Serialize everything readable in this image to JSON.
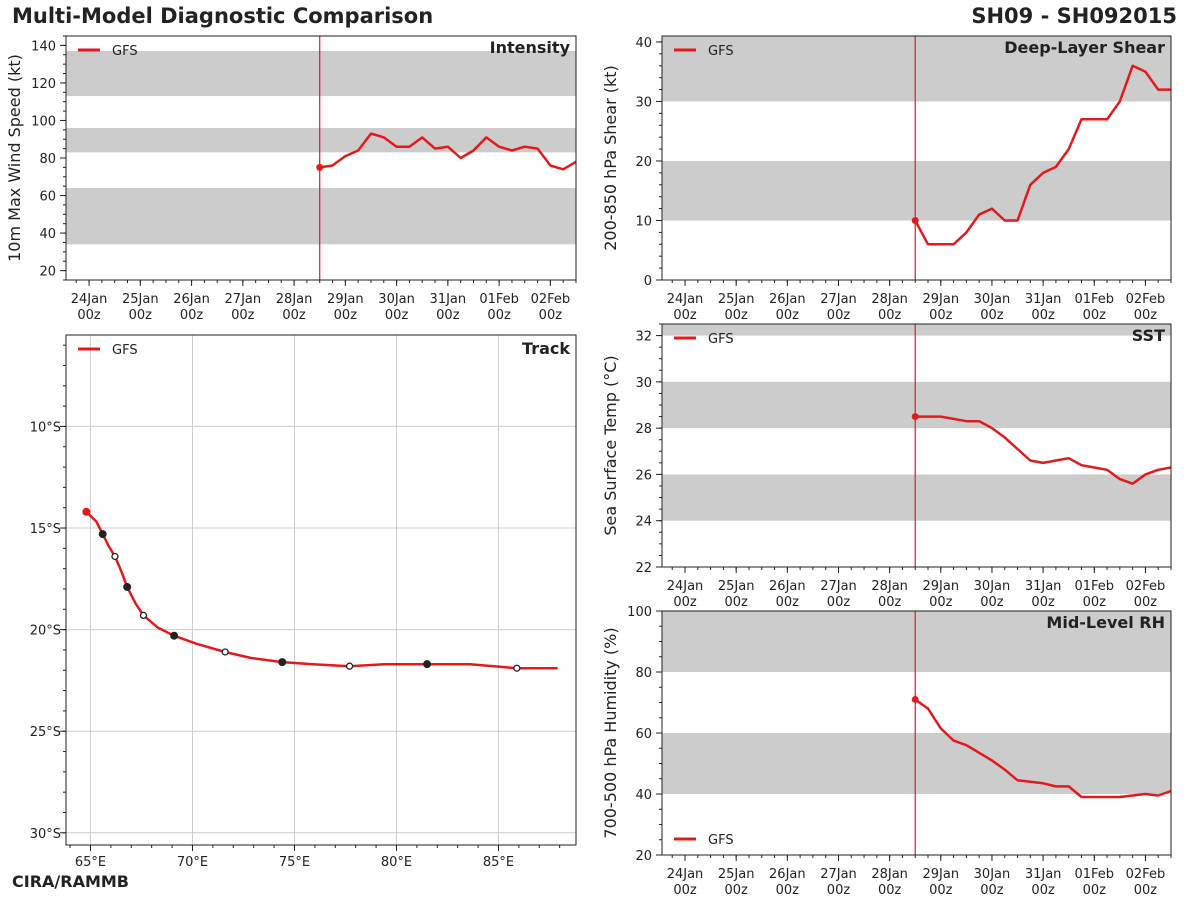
{
  "header": {
    "title": "Multi-Model Diagnostic Comparison",
    "storm": "SH09 - SH092015"
  },
  "footer": {
    "credit": "CIRA/RAMMB"
  },
  "colors": {
    "series": "#e31a1c",
    "band": "#cccccc",
    "grid": "#cccccc",
    "axis": "#222222"
  },
  "shared_time_axis": {
    "tick_labels": [
      [
        "24Jan",
        "00z"
      ],
      [
        "25Jan",
        "00z"
      ],
      [
        "26Jan",
        "00z"
      ],
      [
        "27Jan",
        "00z"
      ],
      [
        "28Jan",
        "00z"
      ],
      [
        "29Jan",
        "00z"
      ],
      [
        "30Jan",
        "00z"
      ],
      [
        "31Jan",
        "00z"
      ],
      [
        "01Feb",
        "00z"
      ],
      [
        "02Feb",
        "00z"
      ]
    ],
    "tick_days": [
      0,
      1,
      2,
      3,
      4,
      5,
      6,
      7,
      8,
      9
    ],
    "xlim_days": [
      -0.45,
      9.5
    ],
    "init_day": 4.5
  },
  "chart_data": [
    {
      "id": "intensity",
      "type": "line",
      "title": "Intensity",
      "ylabel": "10m Max Wind Speed (kt)",
      "ylim": [
        15,
        145
      ],
      "yticks": [
        20,
        40,
        60,
        80,
        100,
        120,
        140
      ],
      "minor_step": 5,
      "bands": [
        [
          34,
          64
        ],
        [
          83,
          96
        ],
        [
          113,
          137
        ]
      ],
      "legend": [
        {
          "name": "GFS",
          "position": "top-left"
        }
      ],
      "series": [
        {
          "name": "GFS",
          "x": [
            4.5,
            4.75,
            5,
            5.25,
            5.5,
            5.75,
            6,
            6.25,
            6.5,
            6.75,
            7,
            7.25,
            7.5,
            7.75,
            8,
            8.25,
            8.5,
            8.75,
            9,
            9.25,
            9.5
          ],
          "values": [
            75,
            76,
            81,
            84,
            93,
            91,
            86,
            86,
            91,
            85,
            86,
            80,
            84,
            91,
            86,
            84,
            86,
            85,
            76,
            74,
            78
          ]
        }
      ]
    },
    {
      "id": "shear",
      "type": "line",
      "title": "Deep-Layer Shear",
      "ylabel": "200-850 hPa Shear (kt)",
      "ylim": [
        0,
        41
      ],
      "yticks": [
        0,
        10,
        20,
        30,
        40
      ],
      "minor_step": 2,
      "bands": [
        [
          10,
          20
        ],
        [
          30,
          41
        ]
      ],
      "legend": [
        {
          "name": "GFS",
          "position": "top-left"
        }
      ],
      "series": [
        {
          "name": "GFS",
          "x": [
            4.5,
            4.75,
            5,
            5.25,
            5.5,
            5.75,
            6,
            6.25,
            6.5,
            6.75,
            7,
            7.25,
            7.5,
            7.75,
            8,
            8.25,
            8.5,
            8.75,
            9,
            9.25,
            9.5
          ],
          "values": [
            10,
            6,
            6,
            6,
            8,
            11,
            12,
            10,
            10,
            16,
            18,
            19,
            22,
            27,
            27,
            27,
            30,
            36,
            35,
            32,
            32
          ]
        }
      ]
    },
    {
      "id": "sst",
      "type": "line",
      "title": "SST",
      "ylabel": "Sea Surface Temp (°C)",
      "ylim": [
        22,
        32.5
      ],
      "yticks": [
        22,
        24,
        26,
        28,
        30,
        32
      ],
      "minor_step": 0.5,
      "bands": [
        [
          24,
          26
        ],
        [
          28,
          30
        ],
        [
          32,
          32.5
        ]
      ],
      "legend": [
        {
          "name": "GFS",
          "position": "top-left"
        }
      ],
      "series": [
        {
          "name": "GFS",
          "x": [
            4.5,
            4.75,
            5,
            5.25,
            5.5,
            5.75,
            6,
            6.25,
            6.5,
            6.75,
            7,
            7.25,
            7.5,
            7.75,
            8,
            8.25,
            8.5,
            8.75,
            9,
            9.25,
            9.5
          ],
          "values": [
            28.5,
            28.5,
            28.5,
            28.4,
            28.3,
            28.3,
            28.0,
            27.6,
            27.1,
            26.6,
            26.5,
            26.6,
            26.7,
            26.4,
            26.3,
            26.2,
            25.8,
            25.6,
            26.0,
            26.2,
            26.3
          ]
        }
      ]
    },
    {
      "id": "rh",
      "type": "line",
      "title": "Mid-Level RH",
      "ylabel": "700-500 hPa Humidity (%)",
      "ylim": [
        20,
        100
      ],
      "yticks": [
        20,
        40,
        60,
        80,
        100
      ],
      "minor_step": 5,
      "bands": [
        [
          40,
          60
        ],
        [
          80,
          100
        ]
      ],
      "legend": [
        {
          "name": "GFS",
          "position": "bottom-left"
        }
      ],
      "series": [
        {
          "name": "GFS",
          "x": [
            4.5,
            4.75,
            5,
            5.25,
            5.5,
            5.75,
            6,
            6.25,
            6.5,
            6.75,
            7,
            7.25,
            7.5,
            7.75,
            8,
            8.25,
            8.5,
            8.75,
            9,
            9.25,
            9.5
          ],
          "values": [
            71,
            68,
            61.5,
            57.5,
            56,
            53.5,
            51,
            48,
            44.5,
            44,
            43.5,
            42.5,
            42.5,
            39,
            39,
            39,
            39,
            39.5,
            40,
            39.5,
            41
          ]
        }
      ]
    },
    {
      "id": "track",
      "type": "line",
      "title": "Track",
      "xlabel": "",
      "ylabel": "",
      "xlim": [
        63.8,
        88.8
      ],
      "ylim": [
        -30.6,
        -5.5
      ],
      "xticks": [
        65,
        70,
        75,
        80,
        85
      ],
      "xtick_labels": [
        "65°E",
        "70°E",
        "75°E",
        "80°E",
        "85°E"
      ],
      "yticks": [
        -10,
        -15,
        -20,
        -25,
        -30
      ],
      "ytick_labels": [
        "10°S",
        "15°S",
        "20°S",
        "25°S",
        "30°S"
      ],
      "grid": true,
      "legend": [
        {
          "name": "GFS",
          "position": "top-left"
        }
      ],
      "series": [
        {
          "name": "GFS",
          "lon": [
            64.8,
            65.3,
            65.6,
            65.9,
            66.2,
            66.5,
            66.8,
            67.2,
            67.6,
            68.3,
            69.1,
            70.2,
            71.6,
            72.9,
            74.4,
            75.9,
            77.7,
            79.4,
            81.5,
            83.6,
            85.9,
            87.9
          ],
          "lat": [
            -14.2,
            -14.7,
            -15.3,
            -15.9,
            -16.4,
            -17.1,
            -17.9,
            -18.7,
            -19.3,
            -19.9,
            -20.3,
            -20.7,
            -21.1,
            -21.4,
            -21.6,
            -21.7,
            -21.8,
            -21.7,
            -21.7,
            -21.7,
            -21.9,
            -21.9
          ]
        }
      ],
      "markers": [
        {
          "lon": 64.8,
          "lat": -14.2,
          "style": "start"
        },
        {
          "lon": 65.6,
          "lat": -15.3,
          "style": "filled"
        },
        {
          "lon": 66.2,
          "lat": -16.4,
          "style": "open"
        },
        {
          "lon": 66.8,
          "lat": -17.9,
          "style": "filled"
        },
        {
          "lon": 67.6,
          "lat": -19.3,
          "style": "open"
        },
        {
          "lon": 69.1,
          "lat": -20.3,
          "style": "filled"
        },
        {
          "lon": 71.6,
          "lat": -21.1,
          "style": "open"
        },
        {
          "lon": 74.4,
          "lat": -21.6,
          "style": "filled"
        },
        {
          "lon": 77.7,
          "lat": -21.8,
          "style": "open"
        },
        {
          "lon": 81.5,
          "lat": -21.7,
          "style": "filled"
        },
        {
          "lon": 85.9,
          "lat": -21.9,
          "style": "open"
        }
      ]
    }
  ]
}
